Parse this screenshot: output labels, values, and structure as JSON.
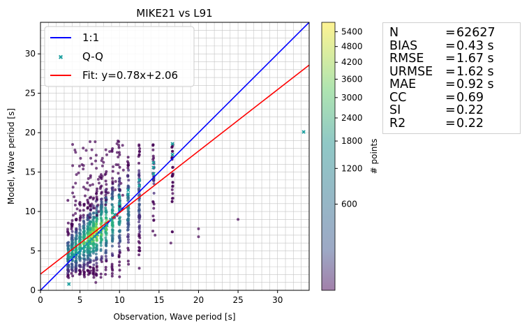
{
  "chart_data": {
    "type": "scatter",
    "title": "MIKE21 vs L91",
    "xlabel": "Observation, Wave period [s]",
    "ylabel": "Model, Wave period [s]",
    "xlim": [
      0,
      34
    ],
    "ylim": [
      0,
      34
    ],
    "x_ticks": [
      "0",
      "5",
      "10",
      "15",
      "20",
      "25",
      "30"
    ],
    "y_ticks": [
      "0",
      "5",
      "10",
      "15",
      "20",
      "25",
      "30"
    ],
    "grid": true,
    "legend": {
      "placement": "top-left",
      "entries": [
        {
          "label": "1:1",
          "color": "#0000ff"
        },
        {
          "label": "Q-Q",
          "color": "#1a9e9e"
        },
        {
          "label": "Fit: y=0.78x+2.06",
          "color": "#ff0000"
        }
      ]
    },
    "lines": {
      "identity": {
        "slope": 1,
        "intercept": 0
      },
      "fit": {
        "slope": 0.78,
        "intercept": 2.06
      }
    },
    "qq_points": [
      [
        3.6,
        0.8
      ],
      [
        3.9,
        4.2
      ],
      [
        4.3,
        4.5
      ],
      [
        4.7,
        4.8
      ],
      [
        5.0,
        5.1
      ],
      [
        5.3,
        5.3
      ],
      [
        5.6,
        5.6
      ],
      [
        5.9,
        5.9
      ],
      [
        6.2,
        6.2
      ],
      [
        6.5,
        6.5
      ],
      [
        6.9,
        6.8
      ],
      [
        7.2,
        7.1
      ],
      [
        7.6,
        7.4
      ],
      [
        8.0,
        7.9
      ],
      [
        8.4,
        8.3
      ],
      [
        8.9,
        9.0
      ],
      [
        9.4,
        9.6
      ],
      [
        10.0,
        10.3
      ],
      [
        10.0,
        11.0
      ],
      [
        10.0,
        11.8
      ],
      [
        11.1,
        12.2
      ],
      [
        11.1,
        12.7
      ],
      [
        12.5,
        13.3
      ],
      [
        12.5,
        14.0
      ],
      [
        14.3,
        14.8
      ],
      [
        14.3,
        15.6
      ],
      [
        14.3,
        16.2
      ],
      [
        16.7,
        17.2
      ],
      [
        16.7,
        18.6
      ],
      [
        33.3,
        20.1
      ]
    ],
    "colorbar": {
      "label": "# points",
      "ticks": [
        "600",
        "1200",
        "1800",
        "2400",
        "3000",
        "3600",
        "4200",
        "4800",
        "5400"
      ],
      "tick_values": [
        600,
        1200,
        1800,
        2400,
        3000,
        3600,
        4200,
        4800,
        5400
      ],
      "max": 5800,
      "colormap": "viridis"
    },
    "stats": [
      {
        "name": "N",
        "value": "62627"
      },
      {
        "name": "BIAS",
        "value": "0.43 s"
      },
      {
        "name": "RMSE",
        "value": "1.67 s"
      },
      {
        "name": "URMSE",
        "value": "1.62 s"
      },
      {
        "name": "MAE",
        "value": "0.92 s"
      },
      {
        "name": "CC",
        "value": "0.69"
      },
      {
        "name": "SI",
        "value": "0.22"
      },
      {
        "name": "R2",
        "value": "0.22"
      }
    ]
  }
}
